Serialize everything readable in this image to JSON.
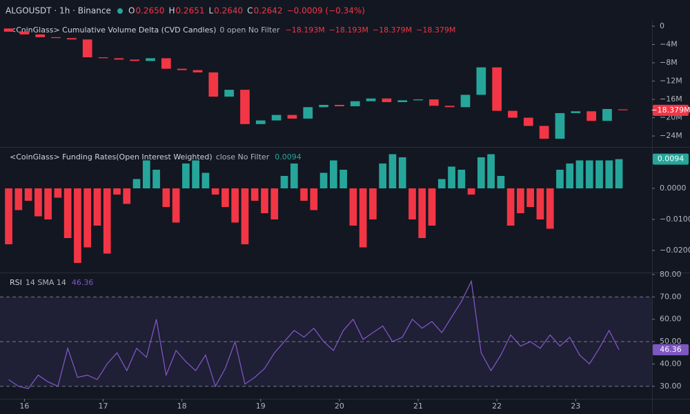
{
  "header": {
    "symbol": "ALGOUSDT · 1h · Binance",
    "ohlc": [
      {
        "key": "O",
        "value": "0.2650"
      },
      {
        "key": "H",
        "value": "0.2651"
      },
      {
        "key": "L",
        "value": "0.2640"
      },
      {
        "key": "C",
        "value": "0.2642"
      }
    ],
    "change": "−0.0009 (−0.34%)"
  },
  "chart_data": [
    {
      "type": "candlestick",
      "title": "<CoinGlass> Cumulative Volume Delta (CVD Candles)",
      "subtitle": "0 open No Filter",
      "legend_values": [
        "−18.193M",
        "−18.193M",
        "−18.379M",
        "−18.379M"
      ],
      "up_color": "#26a69a",
      "down_color": "#f23645",
      "x": [
        15.8,
        16.0,
        16.2,
        16.4,
        16.6,
        16.8,
        17.0,
        17.2,
        17.4,
        17.6,
        17.8,
        18.0,
        18.2,
        18.4,
        18.6,
        18.8,
        19.0,
        19.2,
        19.4,
        19.6,
        19.8,
        20.0,
        20.2,
        20.4,
        20.6,
        20.8,
        21.0,
        21.2,
        21.4,
        21.6,
        21.8,
        22.0,
        22.2,
        22.4,
        22.6,
        22.8,
        23.0,
        23.2,
        23.4,
        23.6
      ],
      "open": [
        -0.5,
        -1.2,
        -1.8,
        -2.4,
        -2.6,
        -2.9,
        -6.8,
        -7.0,
        -7.3,
        -7.6,
        -7.0,
        -9.3,
        -9.6,
        -10.1,
        -15.4,
        -13.9,
        -21.4,
        -20.6,
        -19.4,
        -20.2,
        -17.7,
        -17.2,
        -17.5,
        -16.4,
        -15.8,
        -16.6,
        -16.2,
        -16.0,
        -17.4,
        -17.7,
        -15.0,
        -9.0,
        -18.5,
        -20.0,
        -21.8,
        -24.6,
        -19.0,
        -18.6,
        -20.7,
        -18.193
      ],
      "close": [
        -1.2,
        -1.8,
        -2.4,
        -2.6,
        -2.9,
        -6.8,
        -7.0,
        -7.3,
        -7.6,
        -7.0,
        -9.3,
        -9.6,
        -10.1,
        -15.4,
        -13.9,
        -21.4,
        -20.6,
        -19.4,
        -20.2,
        -17.7,
        -17.2,
        -17.5,
        -16.4,
        -15.8,
        -16.6,
        -16.2,
        -16.0,
        -17.4,
        -17.7,
        -15.0,
        -9.0,
        -18.5,
        -20.0,
        -21.8,
        -24.6,
        -19.0,
        -18.6,
        -20.7,
        -18.1,
        -18.379
      ],
      "xlim": [
        15.76,
        23.97
      ],
      "ylim": [
        -26.4,
        1.2
      ],
      "yticks": [
        0,
        {
          "value": -4,
          "label": "−4M"
        },
        {
          "value": -8,
          "label": "−8M"
        },
        {
          "value": -12,
          "label": "−12M"
        },
        {
          "value": -16,
          "label": "−16M"
        },
        {
          "value": -20,
          "label": "−20M"
        },
        {
          "value": -24,
          "label": "−24M"
        }
      ],
      "last_value": {
        "value": -18.379,
        "label": "−18.379M"
      }
    },
    {
      "type": "bar",
      "title": "<CoinGlass> Funding Rates(Open Interest Weighted)",
      "subtitle": "close No Filter",
      "legend_values": [
        "0.0094"
      ],
      "up_color": "#26a69a",
      "down_color": "#f23645",
      "x": [
        15.8,
        15.925,
        16.05,
        16.175,
        16.3,
        16.425,
        16.55,
        16.675,
        16.8,
        16.925,
        17.05,
        17.175,
        17.3,
        17.425,
        17.55,
        17.675,
        17.8,
        17.925,
        18.05,
        18.175,
        18.3,
        18.425,
        18.55,
        18.675,
        18.8,
        18.925,
        19.05,
        19.175,
        19.3,
        19.425,
        19.55,
        19.675,
        19.8,
        19.925,
        20.05,
        20.175,
        20.3,
        20.425,
        20.55,
        20.675,
        20.8,
        20.925,
        21.05,
        21.175,
        21.3,
        21.425,
        21.55,
        21.675,
        21.8,
        21.925,
        22.05,
        22.175,
        22.3,
        22.425,
        22.55,
        22.675,
        22.8,
        22.925,
        23.05,
        23.175,
        23.3,
        23.425,
        23.55
      ],
      "values": [
        -0.018,
        -0.007,
        -0.004,
        -0.009,
        -0.01,
        -0.003,
        -0.016,
        -0.024,
        -0.019,
        -0.012,
        -0.021,
        -0.002,
        -0.005,
        0.003,
        0.009,
        0.006,
        -0.006,
        -0.011,
        0.008,
        0.009,
        0.005,
        -0.002,
        -0.006,
        -0.011,
        -0.018,
        -0.004,
        -0.008,
        -0.01,
        0.004,
        0.008,
        -0.004,
        -0.007,
        0.005,
        0.009,
        0.006,
        -0.012,
        -0.019,
        -0.01,
        0.008,
        0.011,
        0.01,
        -0.01,
        -0.016,
        -0.012,
        0.003,
        0.007,
        0.006,
        -0.002,
        0.01,
        0.011,
        0.004,
        -0.012,
        -0.008,
        -0.006,
        -0.01,
        -0.013,
        0.006,
        0.008,
        0.009,
        0.009,
        0.009,
        0.009,
        0.0094
      ],
      "xlim": [
        15.76,
        23.97
      ],
      "ylim": [
        -0.0271,
        0.0131
      ],
      "yticks": [
        {
          "value": 0,
          "label": "0.0000"
        },
        {
          "value": -0.01,
          "label": "−0.0100"
        },
        {
          "value": -0.02,
          "label": "−0.0200"
        }
      ],
      "last_value": {
        "value": 0.0094,
        "label": "0.0094"
      }
    },
    {
      "type": "line",
      "title": "RSI",
      "subtitle": "14 SMA 14",
      "legend_values": [
        "46.36"
      ],
      "color": "#7e57c2",
      "band_color": "rgba(126,87,194,0.12)",
      "levels": [
        70,
        50,
        30
      ],
      "x": [
        15.8,
        15.925,
        16.05,
        16.175,
        16.3,
        16.425,
        16.55,
        16.675,
        16.8,
        16.925,
        17.05,
        17.175,
        17.3,
        17.425,
        17.55,
        17.675,
        17.8,
        17.925,
        18.05,
        18.175,
        18.3,
        18.425,
        18.55,
        18.675,
        18.8,
        18.925,
        19.05,
        19.175,
        19.3,
        19.425,
        19.55,
        19.675,
        19.8,
        19.925,
        20.05,
        20.175,
        20.3,
        20.425,
        20.55,
        20.675,
        20.8,
        20.925,
        21.05,
        21.175,
        21.3,
        21.425,
        21.55,
        21.675,
        21.8,
        21.925,
        22.05,
        22.175,
        22.3,
        22.425,
        22.55,
        22.675,
        22.8,
        22.925,
        23.05,
        23.175,
        23.3,
        23.425,
        23.55
      ],
      "values": [
        33,
        30,
        29,
        35,
        32,
        30,
        47,
        34,
        35,
        33,
        40,
        45,
        37,
        47,
        43,
        60,
        35,
        46,
        41,
        37,
        44,
        30,
        38,
        50,
        31,
        34,
        38,
        45,
        50,
        55,
        52,
        56,
        50,
        46,
        55,
        60,
        51,
        54,
        57,
        50,
        52,
        60,
        56,
        59,
        54,
        61,
        68,
        77,
        45,
        37,
        44,
        53,
        48,
        50,
        47,
        53,
        48,
        52,
        44,
        40,
        47,
        55,
        46.36
      ],
      "xlim": [
        15.76,
        23.97
      ],
      "ylim": [
        24.4,
        80.6
      ],
      "yticks": [
        {
          "value": 30,
          "label": "30.00"
        },
        {
          "value": 40,
          "label": "40.00"
        },
        {
          "value": 50,
          "label": "50.00"
        },
        {
          "value": 60,
          "label": "60.00"
        },
        {
          "value": 70,
          "label": "70.00"
        },
        {
          "value": 80,
          "label": "80.00"
        }
      ],
      "xticks": [
        16,
        17,
        18,
        19,
        20,
        21,
        22,
        23
      ],
      "last_value": {
        "value": 46.36,
        "label": "46.36"
      }
    }
  ]
}
